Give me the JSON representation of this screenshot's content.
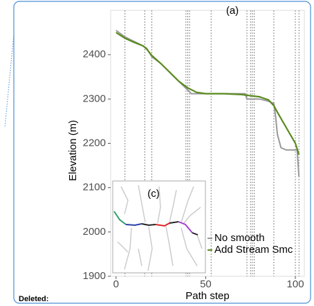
{
  "chart_data": {
    "type": "line",
    "title": "(a)",
    "x_label": "Path step",
    "y_label": "Elevation (m)",
    "inset_label": "(c)",
    "xlim": [
      -3,
      105
    ],
    "ylim": [
      1900,
      2500
    ],
    "xticks": [
      0,
      50,
      100
    ],
    "yticks": [
      1900,
      2000,
      2100,
      2200,
      2300,
      2400
    ],
    "vlines": [
      5,
      16,
      20,
      39,
      40,
      41,
      53,
      73,
      75,
      76,
      77,
      88,
      100,
      102
    ],
    "series": [
      {
        "name": "No smooth",
        "color": "#999999",
        "x": [
          0,
          5,
          10,
          15,
          17,
          20,
          25,
          30,
          35,
          40,
          42,
          50,
          60,
          72,
          73,
          80,
          85,
          88,
          89,
          90,
          92,
          95,
          101,
          102
        ],
        "values": [
          2455,
          2440,
          2430,
          2420,
          2415,
          2395,
          2380,
          2360,
          2340,
          2320,
          2312,
          2312,
          2312,
          2312,
          2300,
          2300,
          2295,
          2290,
          2260,
          2220,
          2190,
          2185,
          2185,
          2125
        ]
      },
      {
        "name": "Add Stream Smc",
        "color": "#5a8a1e",
        "x": [
          0,
          5,
          10,
          15,
          17,
          20,
          25,
          30,
          35,
          40,
          45,
          50,
          60,
          70,
          80,
          85,
          88,
          90,
          95,
          100,
          102
        ],
        "values": [
          2450,
          2437,
          2428,
          2420,
          2413,
          2398,
          2380,
          2360,
          2340,
          2325,
          2315,
          2312,
          2312,
          2310,
          2305,
          2298,
          2285,
          2270,
          2235,
          2200,
          2175
        ]
      }
    ]
  },
  "document": {
    "label": "Deleted:"
  }
}
